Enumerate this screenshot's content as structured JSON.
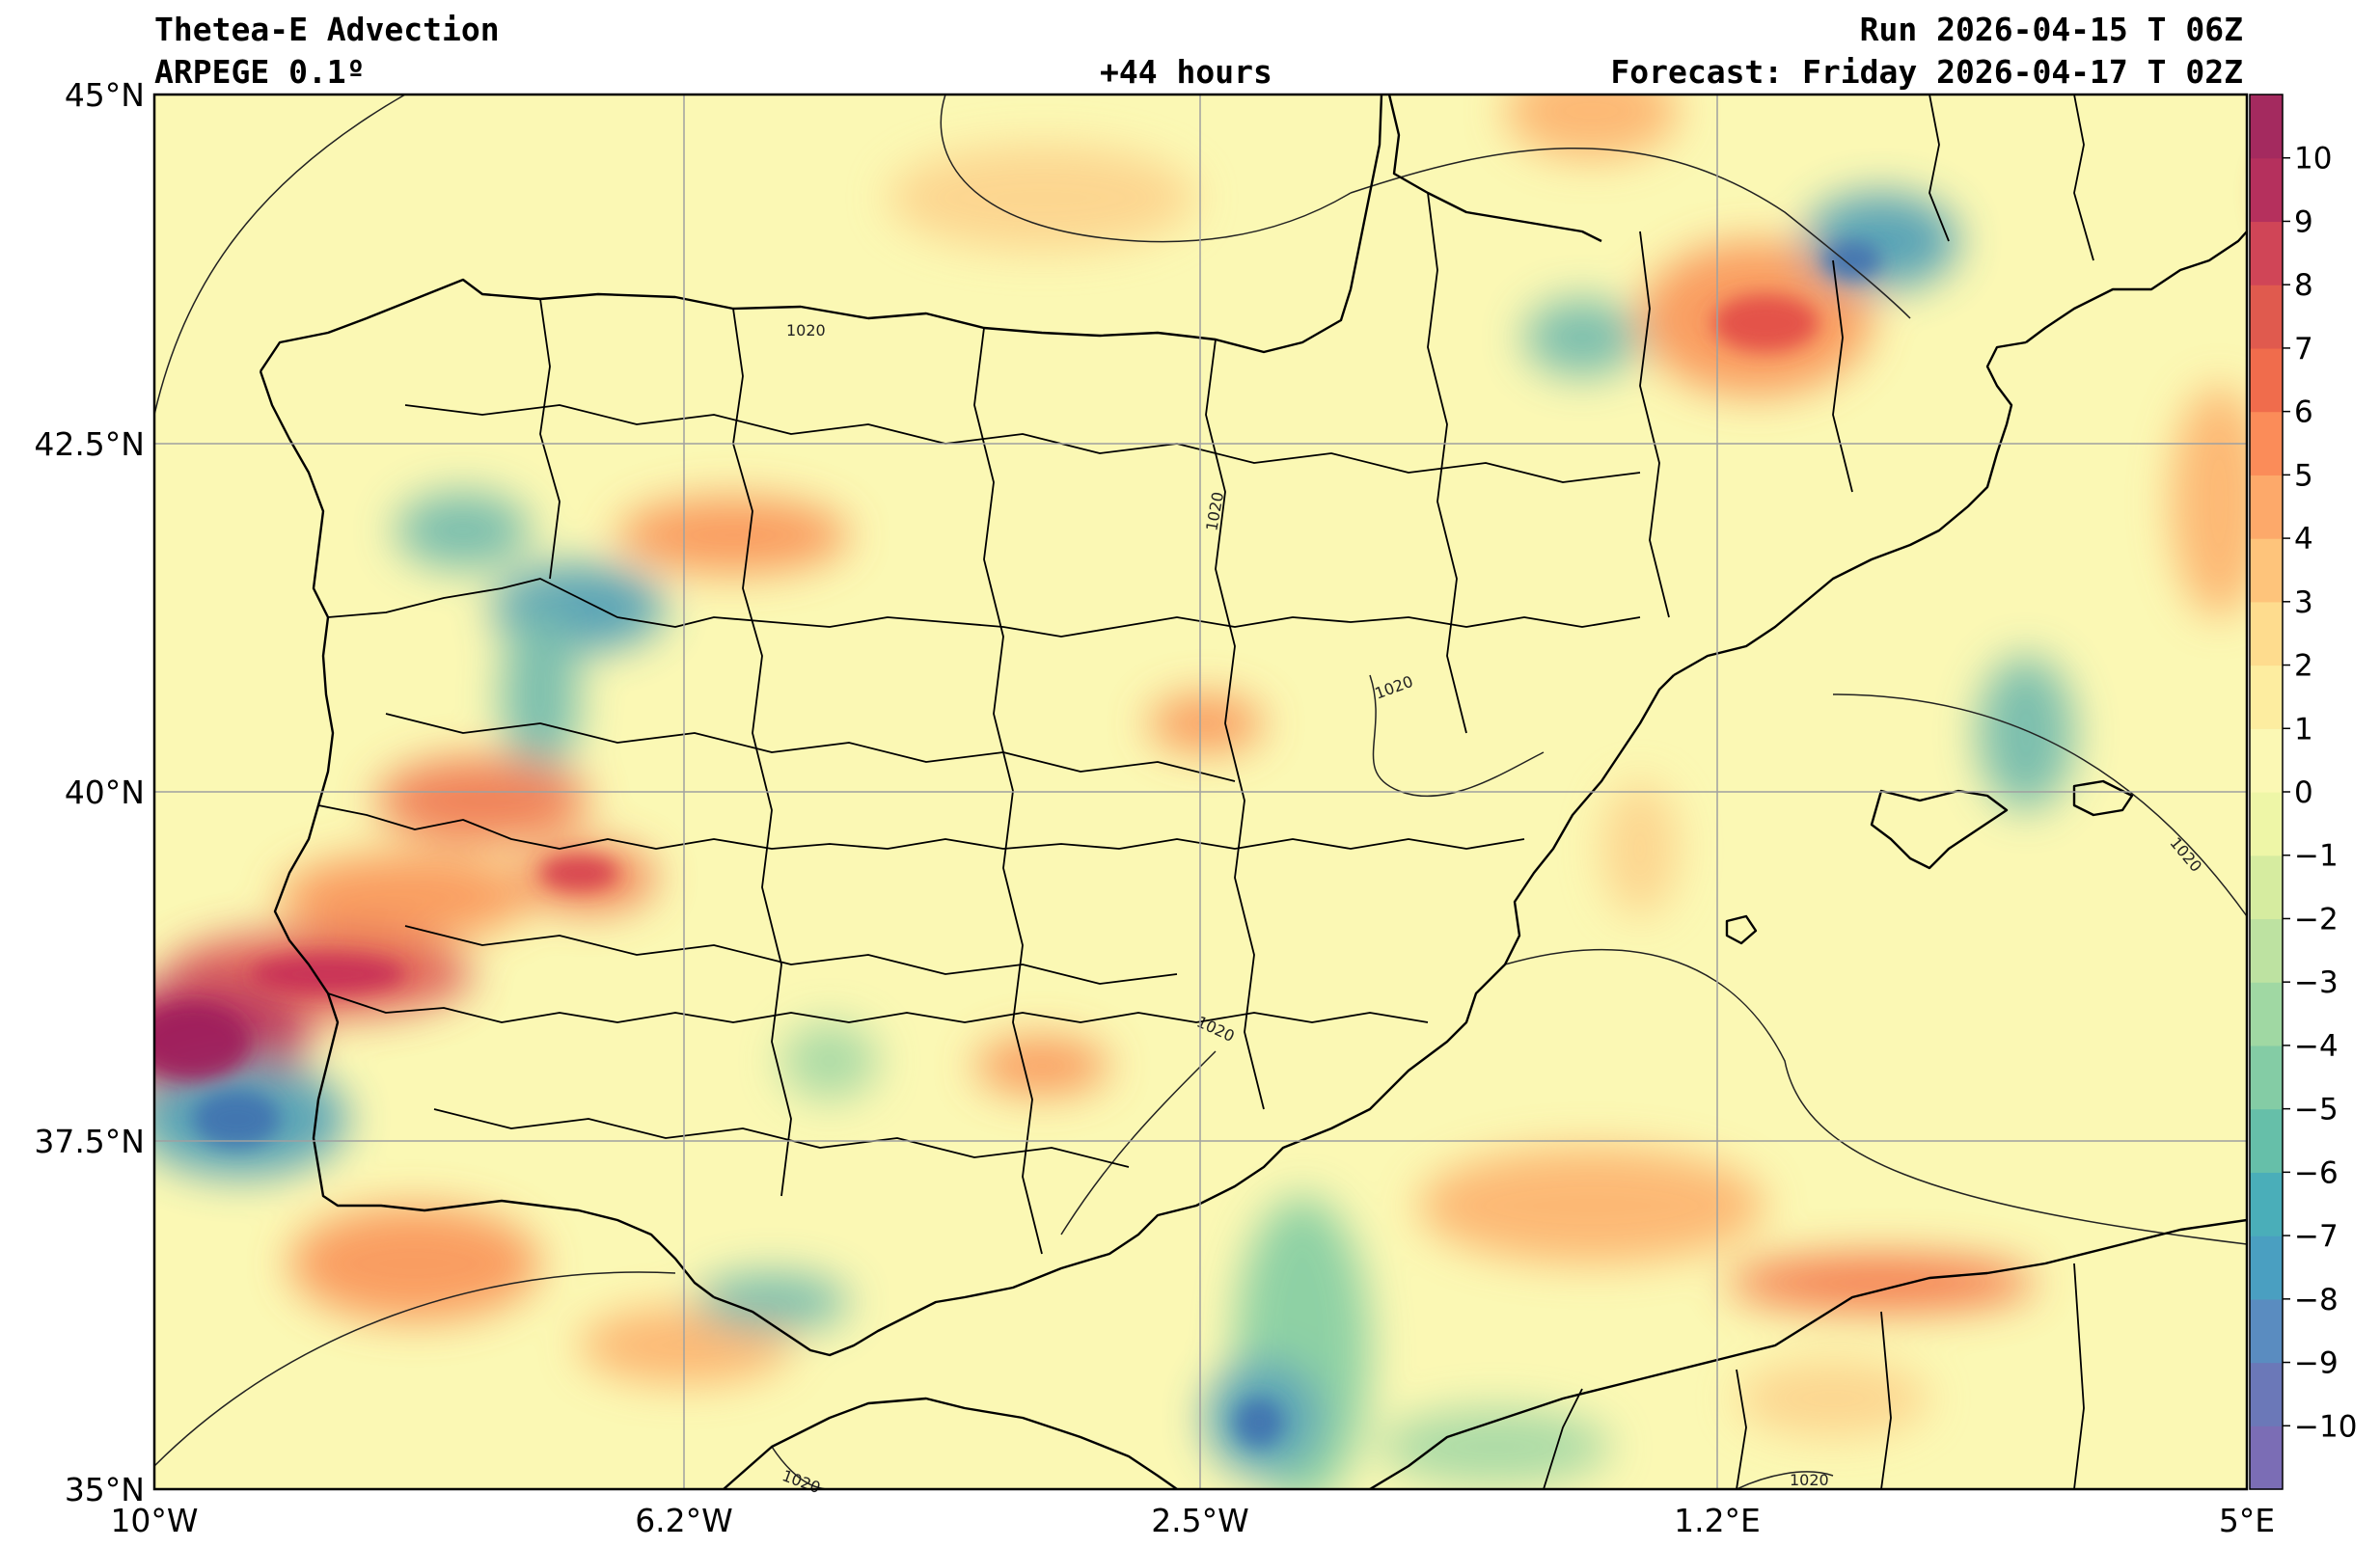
{
  "header": {
    "title": "Thetea-E Advection",
    "model": "ARPEGE 0.1º",
    "lead": "+44 hours",
    "run": "Run 2026-04-15 T 06Z",
    "forecast": "Forecast: Friday 2026-04-17 T 02Z"
  },
  "map": {
    "lat_labels": [
      "45°N",
      "42.5°N",
      "40°N",
      "37.5°N",
      "35°N"
    ],
    "lon_labels": [
      "10°W",
      "6.2°W",
      "2.5°W",
      "1.2°E",
      "5°E"
    ],
    "extent": {
      "lon": [
        -10,
        5
      ],
      "lat": [
        35,
        45
      ]
    },
    "isobar_labels": [
      "1020",
      "1020",
      "1020",
      "1020",
      "1020",
      "1020",
      "1020"
    ]
  },
  "colorbar": {
    "ticks": [
      "10",
      "9",
      "8",
      "7",
      "6",
      "5",
      "4",
      "3",
      "2",
      "1",
      "0",
      "−1",
      "−2",
      "−3",
      "−4",
      "−5",
      "−6",
      "−7",
      "−8",
      "−9",
      "−10"
    ],
    "range": [
      -11,
      11
    ],
    "colormap": "Spectral_r"
  }
}
